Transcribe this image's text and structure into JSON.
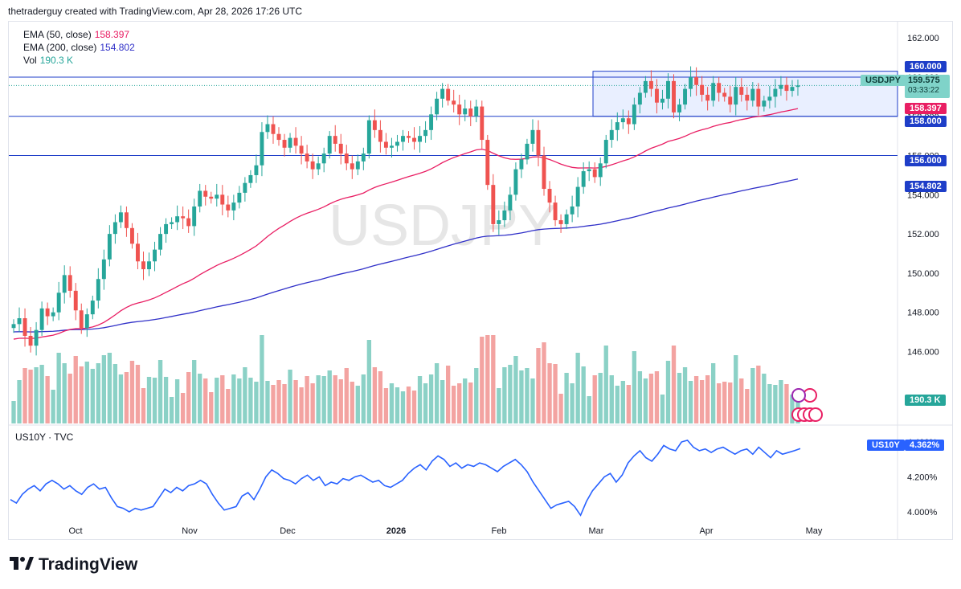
{
  "header": {
    "text": "thetraderguy created with TradingView.com, Apr 28, 2026 17:26 UTC"
  },
  "legend": {
    "ema50": {
      "label": "EMA (50, close)",
      "value": "158.397"
    },
    "ema200": {
      "label": "EMA (200, close)",
      "value": "154.802"
    },
    "vol": {
      "label": "Vol",
      "value": "190.3 K"
    }
  },
  "watermark": "USDJPY",
  "colors": {
    "up": "#26a69a",
    "down": "#ef5350",
    "ema50": "#e91e63",
    "ema200": "#3030c8",
    "line": "#1e3ec8",
    "us10y": "#2962ff"
  },
  "price_tags": {
    "symbol": "USDJPY",
    "last": "159.575",
    "countdown": "03:33:22",
    "ema50": "158.397",
    "ema200": "154.802",
    "h160": "160.000",
    "h158": "158.000",
    "h156": "156.000",
    "vol": "190.3 K"
  },
  "lower_pane": {
    "title": "US10Y · TVC",
    "tag_symbol": "US10Y",
    "tag_value": "4.362%"
  },
  "footer": {
    "brand": "TradingView"
  },
  "chart_data": [
    {
      "type": "candlestick",
      "symbol": "USDJPY",
      "y_ticks": [
        "162.000",
        "160.000",
        "158.000",
        "156.000",
        "154.000",
        "152.000",
        "150.000",
        "148.000",
        "146.000"
      ],
      "ylim": [
        145.2,
        162.5
      ],
      "x_ticks": [
        "Oct",
        "Nov",
        "Dec",
        "2026",
        "Feb",
        "Mar",
        "Apr",
        "May"
      ],
      "horizontal_lines": [
        160.0,
        158.0,
        156.0
      ],
      "range_box": [
        158.0,
        160.3
      ],
      "close": [
        147.4,
        147.7,
        146.8,
        146.3,
        147.1,
        148.2,
        147.8,
        148.0,
        149.0,
        149.9,
        149.1,
        148.1,
        147.2,
        147.9,
        148.6,
        149.7,
        150.7,
        152.0,
        152.6,
        153.1,
        152.3,
        151.5,
        150.6,
        150.2,
        150.6,
        151.2,
        152.0,
        152.5,
        152.6,
        152.9,
        152.8,
        152.4,
        153.4,
        154.2,
        153.9,
        153.8,
        154.0,
        153.5,
        153.2,
        153.6,
        154.1,
        154.6,
        155.0,
        155.5,
        157.2,
        157.6,
        157.1,
        156.8,
        156.4,
        156.9,
        156.5,
        156.1,
        155.7,
        155.3,
        155.6,
        156.1,
        157.0,
        156.6,
        156.1,
        155.6,
        155.3,
        155.7,
        156.1,
        157.8,
        157.3,
        156.7,
        156.4,
        156.5,
        156.7,
        157.0,
        156.9,
        156.7,
        157.0,
        157.3,
        158.1,
        158.9,
        159.4,
        158.8,
        158.6,
        158.1,
        158.4,
        158.0,
        158.5,
        156.8,
        154.5,
        152.5,
        152.7,
        153.2,
        154.0,
        155.3,
        155.8,
        156.6,
        157.3,
        156.0,
        154.3,
        153.6,
        152.7,
        152.5,
        153.0,
        153.4,
        154.4,
        155.2,
        155.3,
        154.9,
        155.6,
        156.8,
        157.3,
        157.7,
        157.9,
        157.6,
        158.6,
        159.2,
        159.8,
        159.4,
        158.7,
        158.9,
        159.8,
        158.2,
        158.6,
        159.4,
        160.0,
        159.6,
        159.1,
        158.8,
        159.7,
        159.2,
        159.0,
        158.6,
        159.5,
        159.1,
        158.8,
        159.4,
        158.5,
        158.8,
        159.0,
        159.4,
        159.6,
        159.3,
        159.5,
        159.575
      ],
      "volume_last": "190.3 K",
      "ema_50_end": 158.397,
      "ema_200_end": 154.802
    },
    {
      "type": "line",
      "symbol": "US10Y",
      "y_ticks": [
        "4.400%",
        "4.200%",
        "4.000%"
      ],
      "ylim": [
        3.88,
        4.46
      ],
      "values": [
        4.07,
        4.05,
        4.1,
        4.13,
        4.15,
        4.12,
        4.16,
        4.18,
        4.16,
        4.13,
        4.15,
        4.12,
        4.1,
        4.14,
        4.16,
        4.13,
        4.14,
        4.08,
        4.03,
        4.02,
        4.0,
        4.02,
        4.01,
        4.02,
        4.03,
        4.08,
        4.13,
        4.11,
        4.14,
        4.12,
        4.15,
        4.16,
        4.18,
        4.16,
        4.1,
        4.05,
        4.01,
        4.02,
        4.03,
        4.09,
        4.11,
        4.07,
        4.13,
        4.2,
        4.24,
        4.22,
        4.19,
        4.18,
        4.16,
        4.19,
        4.21,
        4.18,
        4.2,
        4.15,
        4.17,
        4.16,
        4.19,
        4.18,
        4.2,
        4.21,
        4.19,
        4.17,
        4.18,
        4.15,
        4.14,
        4.16,
        4.18,
        4.22,
        4.25,
        4.27,
        4.24,
        4.29,
        4.32,
        4.3,
        4.26,
        4.28,
        4.25,
        4.27,
        4.26,
        4.28,
        4.27,
        4.25,
        4.23,
        4.26,
        4.28,
        4.3,
        4.27,
        4.23,
        4.17,
        4.12,
        4.07,
        4.02,
        4.04,
        4.05,
        4.06,
        4.03,
        3.98,
        4.06,
        4.12,
        4.16,
        4.2,
        4.22,
        4.17,
        4.21,
        4.28,
        4.32,
        4.35,
        4.31,
        4.29,
        4.33,
        4.38,
        4.36,
        4.35,
        4.4,
        4.41,
        4.37,
        4.35,
        4.36,
        4.34,
        4.36,
        4.37,
        4.35,
        4.33,
        4.35,
        4.36,
        4.33,
        4.37,
        4.34,
        4.31,
        4.35,
        4.33,
        4.34,
        4.35,
        4.362
      ]
    }
  ]
}
